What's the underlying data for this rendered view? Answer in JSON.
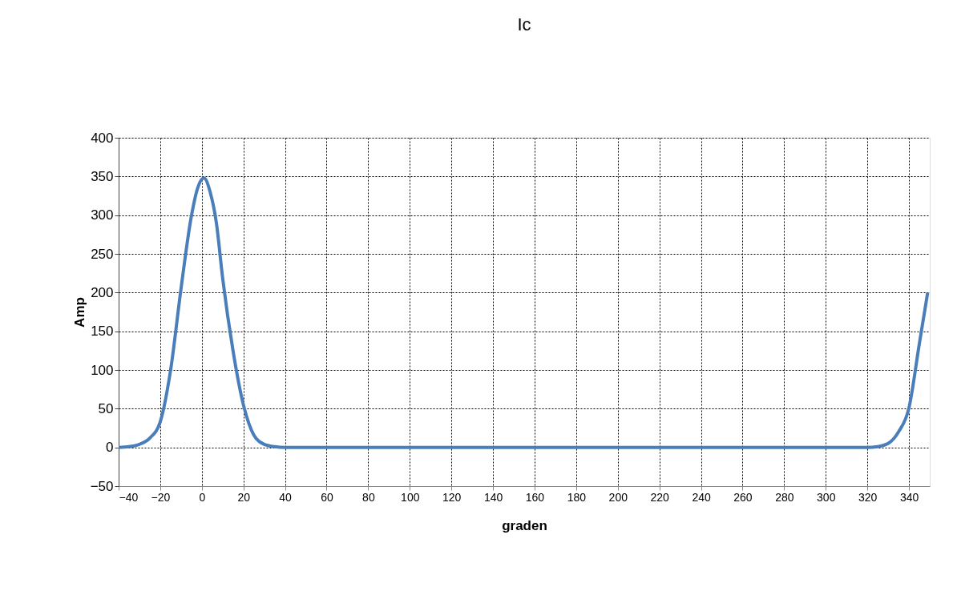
{
  "chart_data": {
    "type": "line",
    "title": "Ic",
    "xlabel": "graden",
    "ylabel": "Amp",
    "x": [
      -40,
      -35,
      -30,
      -25,
      -20,
      -15,
      -10,
      -5,
      -2,
      1,
      4,
      7,
      10,
      15,
      20,
      25,
      30,
      35,
      40,
      60,
      100,
      200,
      300,
      320,
      325,
      330,
      335,
      340,
      345,
      349
    ],
    "series": [
      {
        "color": "#4a7ebb",
        "values": [
          0,
          1,
          4,
          12,
          33,
          100,
          205,
          299,
          335,
          348,
          330,
          290,
          219,
          125,
          55,
          16,
          4,
          1,
          0,
          0,
          0,
          0,
          0,
          0,
          1,
          5,
          20,
          51,
          134,
          200
        ]
      }
    ],
    "xlim": [
      -40,
      350
    ],
    "xticks": [
      -40,
      -20,
      0,
      20,
      40,
      60,
      80,
      100,
      120,
      140,
      160,
      180,
      200,
      220,
      240,
      260,
      280,
      300,
      320,
      340
    ],
    "ylim": [
      -50,
      400
    ],
    "yticks": [
      -50,
      0,
      50,
      100,
      150,
      200,
      250,
      300,
      350,
      400
    ],
    "grid": true,
    "marker": "none",
    "line_style": "solid"
  }
}
